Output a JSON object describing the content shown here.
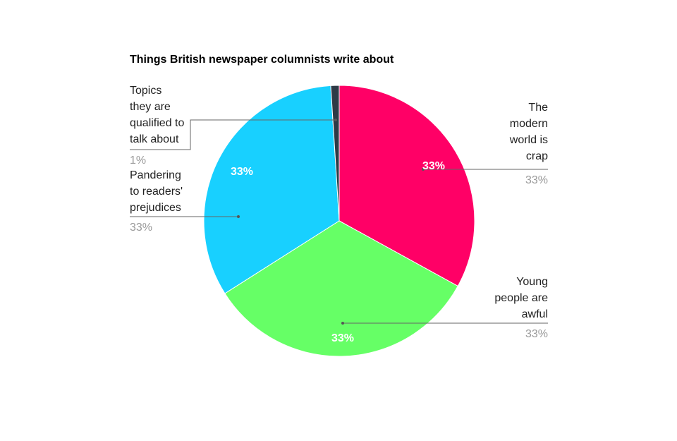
{
  "chart_data": {
    "type": "pie",
    "title": "Things British newspaper columnists write about",
    "categories": [
      "The\nmodern\nworld is\ncrap",
      "Young\npeople are\nawful",
      "Pandering\nto readers'\nprejudices",
      "Topics\nthey are\nqualified to\ntalk about"
    ],
    "values": [
      33,
      33,
      33,
      1
    ],
    "value_labels": [
      "33%",
      "33%",
      "33%",
      "1%"
    ],
    "colors": [
      "#ff0066",
      "#66ff66",
      "#18d0ff",
      "#2e3a46"
    ]
  }
}
